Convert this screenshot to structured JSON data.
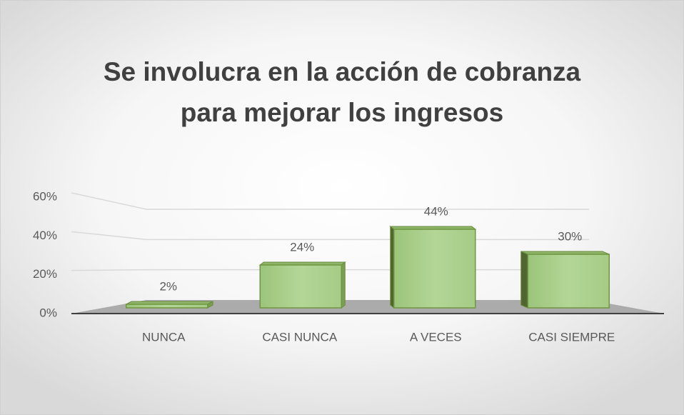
{
  "chart_data": {
    "type": "bar",
    "title": [
      "Se involucra en la acción de cobranza",
      "para mejorar los ingresos"
    ],
    "categories": [
      "NUNCA",
      "CASI NUNCA",
      "A VECES",
      "CASI SIEMPRE"
    ],
    "values": [
      2,
      24,
      44,
      30
    ],
    "value_labels": [
      "2%",
      "24%",
      "44%",
      "30%"
    ],
    "color": "#a9d08e",
    "ylim": [
      0,
      60
    ],
    "yticks": [
      {
        "value": 0,
        "label": "0%"
      },
      {
        "value": 20,
        "label": "20%"
      },
      {
        "value": 40,
        "label": "40%"
      },
      {
        "value": 60,
        "label": "60%"
      }
    ],
    "grid": true
  }
}
